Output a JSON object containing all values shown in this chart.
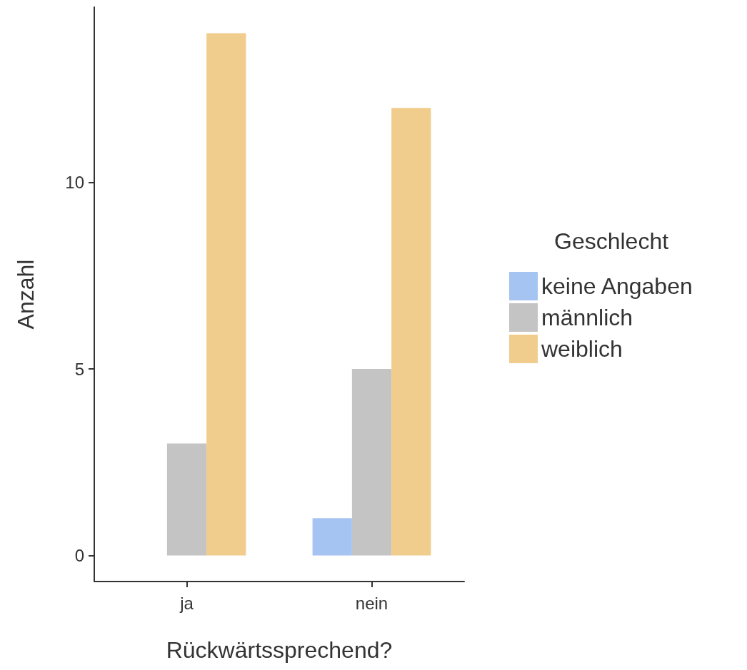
{
  "chart_data": {
    "type": "bar",
    "xlabel": "Rückwärtssprechend?",
    "ylabel": "Anzahl",
    "legend_title": "Geschlecht",
    "categories": [
      "ja",
      "nein"
    ],
    "series": [
      {
        "name": "keine Angaben",
        "color": "#a6c4f2",
        "values": [
          null,
          1
        ]
      },
      {
        "name": "männlich",
        "color": "#c4c4c4",
        "values": [
          3,
          5
        ]
      },
      {
        "name": "weiblich",
        "color": "#f0cd8c",
        "values": [
          14,
          12
        ]
      }
    ],
    "ylim": [
      -0.7,
      14.7
    ],
    "yticks": [
      0,
      5,
      10
    ],
    "grid": false,
    "legend": "right"
  }
}
